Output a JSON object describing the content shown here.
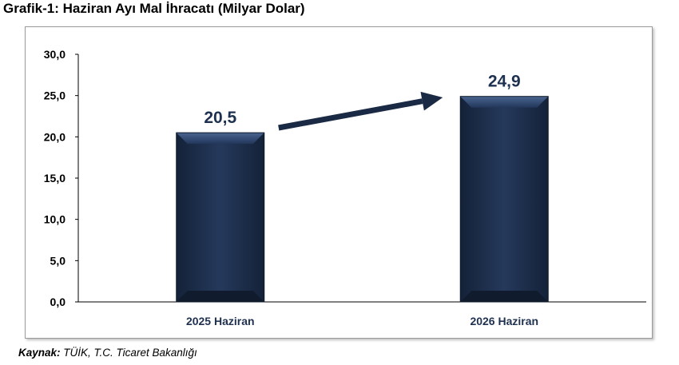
{
  "title": "Grafik-1: Haziran Ayı Mal İhracatı (Milyar Dolar)",
  "source": {
    "label": "Kaynak:",
    "text": "TÜİK, T.C. Ticaret Bakanlığı"
  },
  "colors": {
    "bar": "#1f3150",
    "bar_dark": "#142238",
    "bar_light": "#3a527a",
    "arrow": "#1b2a44",
    "label": "#1f3150"
  },
  "chart_data": {
    "type": "bar",
    "categories": [
      "2025 Haziran",
      "2026 Haziran"
    ],
    "values": [
      20.5,
      24.9
    ],
    "data_labels": [
      "20,5",
      "24,9"
    ],
    "ylim": [
      0,
      30
    ],
    "yticks": [
      0,
      5,
      10,
      15,
      20,
      25,
      30
    ],
    "ytick_labels": [
      "0,0",
      "5,0",
      "10,0",
      "15,0",
      "20,0",
      "25,0",
      "30,0"
    ],
    "grid": false,
    "annotation": "arrow from first bar to second bar"
  }
}
